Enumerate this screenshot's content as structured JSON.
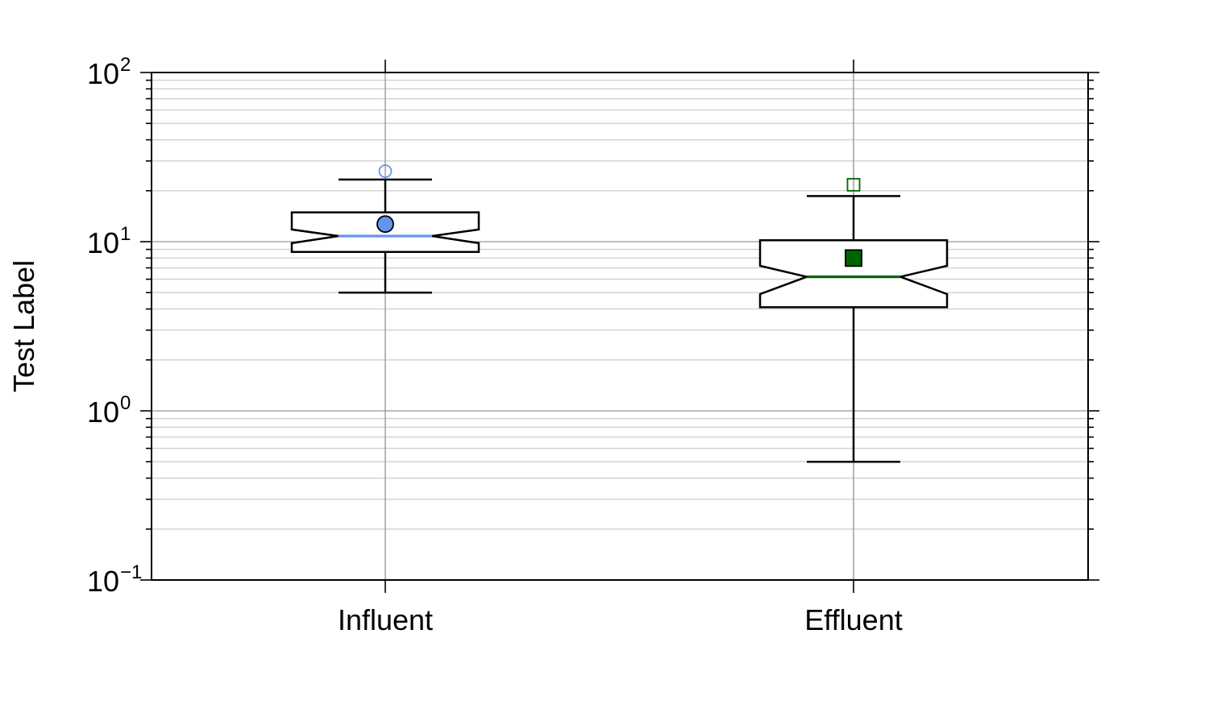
{
  "chart_data": {
    "type": "boxplot",
    "ylabel": "Test Label",
    "xlabel": "",
    "yscale": "log",
    "ylim": [
      0.1,
      100
    ],
    "y_ticks": [
      {
        "base": "10",
        "exp": "−1",
        "value": 0.1
      },
      {
        "base": "10",
        "exp": "0",
        "value": 1
      },
      {
        "base": "10",
        "exp": "1",
        "value": 10
      },
      {
        "base": "10",
        "exp": "2",
        "value": 100
      }
    ],
    "grid": true,
    "categories": [
      "Influent",
      "Effluent"
    ],
    "series": [
      {
        "category": "Influent",
        "notch": true,
        "whisker_low": 5.0,
        "q1": 8.7,
        "notch_low": 9.8,
        "median": 10.8,
        "notch_high": 11.8,
        "q3": 14.9,
        "whisker_high": 23.3,
        "mean": 12.7,
        "outliers": [
          26.1
        ],
        "color": "#6495ed",
        "marker": "circle"
      },
      {
        "category": "Effluent",
        "notch": true,
        "whisker_low": 0.5,
        "q1": 4.1,
        "notch_low": 4.9,
        "median": 6.2,
        "notch_high": 7.2,
        "q3": 10.2,
        "whisker_high": 18.6,
        "mean": 8.0,
        "outliers": [
          21.7
        ],
        "color": "#006400",
        "marker": "square"
      }
    ]
  }
}
